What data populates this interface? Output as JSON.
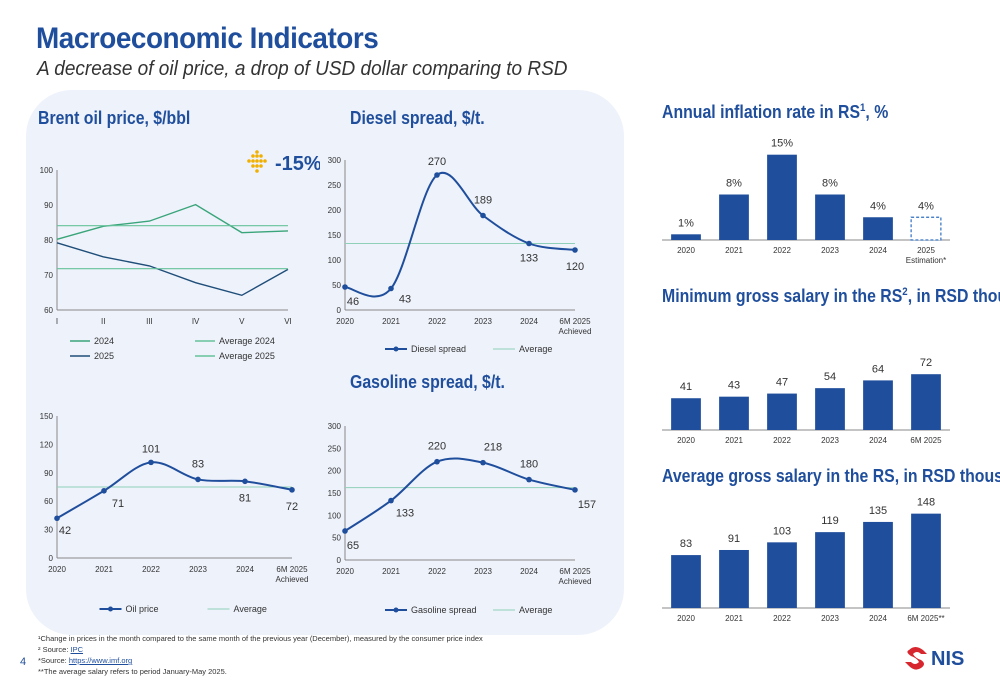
{
  "header": {
    "title": "Macroeconomic Indicators",
    "subtitle": "A decrease of oil price, a drop of USD dollar comparing to RSD"
  },
  "sections": {
    "brent": "Brent oil price, $/bbl",
    "diesel": "Diesel spread, $/t.",
    "gasoline": "Gasoline spread, $/t.",
    "inflation": "Annual inflation rate in RS",
    "inflation_sup": "1",
    "inflation_suffix": ", %",
    "min_salary": "Minimum gross salary in the RS",
    "min_salary_sup": "2",
    "min_salary_suffix": ", in RSD thousand",
    "avg_salary": "Average gross salary in the RS, in RSD thousand"
  },
  "badge": {
    "text": "-15%"
  },
  "footnotes": {
    "f1": "¹Change in prices in the month compared to the same month of the previous year (December), measured by the consumer price index",
    "f2_prefix": "² Source: ",
    "f2_link": "IPC",
    "f3_prefix": "*Source: ",
    "f3_link": "https://www.imf.org",
    "f4": "**The average salary refers to period January-May 2025."
  },
  "page_number": "4",
  "logo_text": "NIS",
  "colors": {
    "primary": "#1f4e9c",
    "green": "#3aa57a",
    "dark_blue": "#1f4e79",
    "avg_line": "#8fd0b8"
  },
  "chart_data": [
    {
      "id": "brent_monthly",
      "type": "line",
      "categories": [
        "I",
        "II",
        "III",
        "IV",
        "V",
        "VI"
      ],
      "ylim": [
        60,
        100
      ],
      "yticks": [
        60,
        70,
        80,
        90,
        100
      ],
      "series": [
        {
          "name": "2024",
          "values": [
            80.2,
            83.9,
            85.4,
            90.1,
            82.1,
            82.6
          ],
          "color": "#3aa57a"
        },
        {
          "name": "2025",
          "values": [
            79.2,
            75.2,
            72.6,
            67.8,
            64.2,
            71.6
          ],
          "color": "#1f4e79"
        },
        {
          "name": "Average 2024",
          "values": [
            84.1,
            84.1,
            84.1,
            84.1,
            84.1,
            84.1
          ],
          "color": "#66c29a"
        },
        {
          "name": "Average 2025",
          "values": [
            71.8,
            71.8,
            71.8,
            71.8,
            71.8,
            71.8
          ],
          "color": "#66c29a"
        }
      ],
      "legend": "bottom"
    },
    {
      "id": "diesel",
      "type": "line",
      "categories": [
        "2020",
        "2021",
        "2022",
        "2023",
        "2024",
        "6M 2025\nAchieved"
      ],
      "ylim": [
        0,
        300
      ],
      "yticks": [
        0,
        50,
        100,
        150,
        200,
        250,
        300
      ],
      "series": [
        {
          "name": "Diesel spread",
          "values": [
            46,
            43,
            270,
            189,
            133,
            120
          ]
        },
        {
          "name": "Average",
          "values": [
            133,
            133,
            133,
            133,
            133,
            133
          ]
        }
      ],
      "legend": "bottom"
    },
    {
      "id": "oil_price",
      "type": "line",
      "categories": [
        "2020",
        "2021",
        "2022",
        "2023",
        "2024",
        "6M 2025\nAchieved"
      ],
      "ylim": [
        0,
        150
      ],
      "yticks": [
        0,
        30,
        60,
        90,
        120,
        150
      ],
      "series": [
        {
          "name": "Oil price",
          "values": [
            42,
            71,
            101,
            83,
            81,
            72
          ]
        },
        {
          "name": "Average",
          "values": [
            75,
            75,
            75,
            75,
            75,
            75
          ]
        }
      ],
      "legend": "bottom"
    },
    {
      "id": "gasoline",
      "type": "line",
      "categories": [
        "2020",
        "2021",
        "2022",
        "2023",
        "2024",
        "6M 2025\nAchieved"
      ],
      "ylim": [
        0,
        300
      ],
      "yticks": [
        0,
        50,
        100,
        150,
        200,
        250,
        300
      ],
      "series": [
        {
          "name": "Gasoline spread",
          "values": [
            65,
            133,
            220,
            218,
            180,
            157
          ]
        },
        {
          "name": "Average",
          "values": [
            162,
            162,
            162,
            162,
            162,
            162
          ]
        }
      ],
      "legend": "bottom"
    },
    {
      "id": "inflation",
      "type": "bar",
      "categories": [
        "2020",
        "2021",
        "2022",
        "2023",
        "2024",
        "2025\nEstimation*"
      ],
      "values": [
        1,
        8,
        15,
        8,
        4,
        4
      ],
      "labels": [
        "1%",
        "8%",
        "15%",
        "8%",
        "4%",
        "4%"
      ],
      "estimated": [
        false,
        false,
        false,
        false,
        false,
        true
      ],
      "ylim": [
        0,
        16
      ]
    },
    {
      "id": "min_salary",
      "type": "bar",
      "categories": [
        "2020",
        "2021",
        "2022",
        "2023",
        "2024",
        "6M 2025"
      ],
      "values": [
        41,
        43,
        47,
        54,
        64,
        72
      ],
      "labels": [
        "41",
        "43",
        "47",
        "54",
        "64",
        "72"
      ],
      "ylim": [
        0,
        80
      ]
    },
    {
      "id": "avg_salary",
      "type": "bar",
      "categories": [
        "2020",
        "2021",
        "2022",
        "2023",
        "2024",
        "6M 2025**"
      ],
      "values": [
        83,
        91,
        103,
        119,
        135,
        148
      ],
      "labels": [
        "83",
        "91",
        "103",
        "119",
        "135",
        "148"
      ],
      "ylim": [
        0,
        160
      ]
    }
  ]
}
